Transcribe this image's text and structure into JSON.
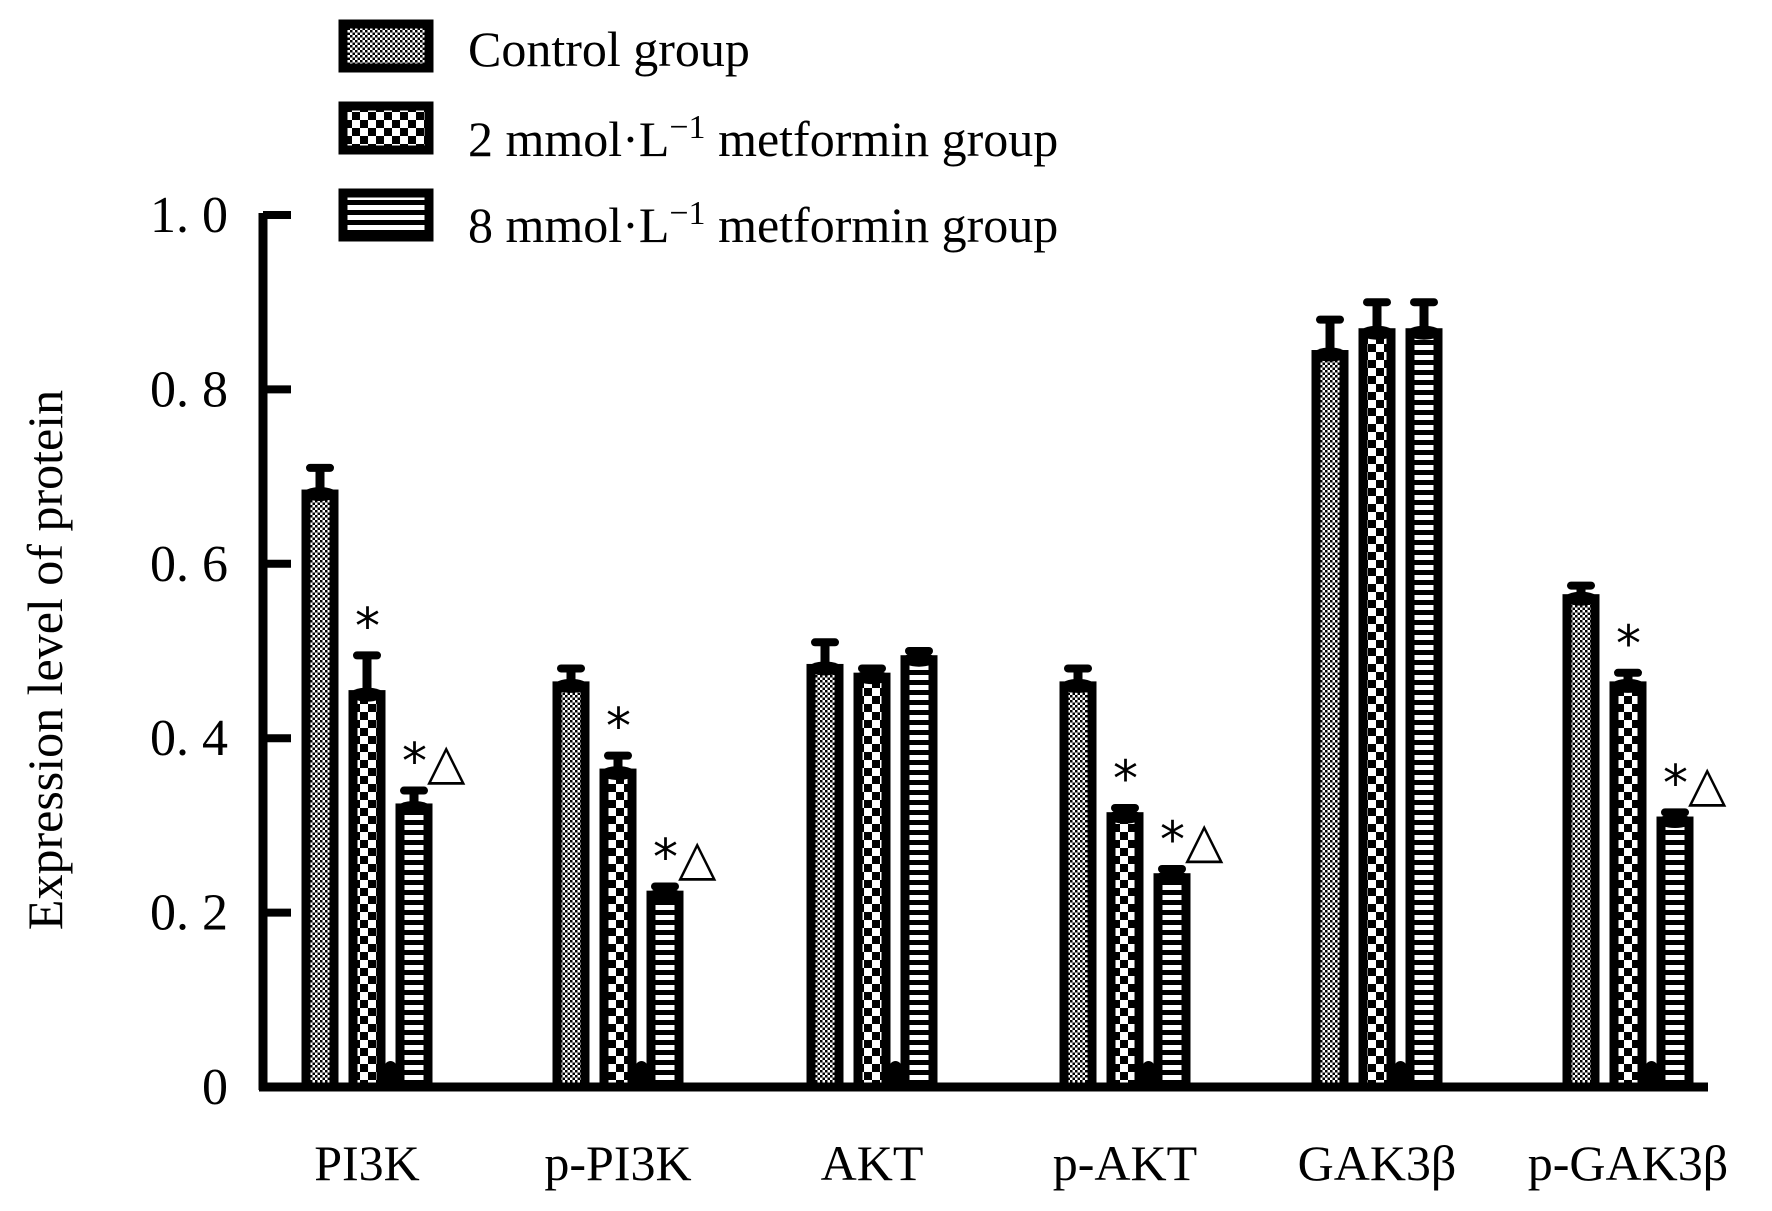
{
  "chart_data": {
    "type": "bar",
    "title": "",
    "xlabel": "",
    "ylabel": "Expression level of protein",
    "ylim": [
      0,
      1.0
    ],
    "yticks": [
      "0",
      "0. 2",
      "0. 4",
      "0. 6",
      "0. 8",
      "1. 0"
    ],
    "ytick_values": [
      0,
      0.2,
      0.4,
      0.6,
      0.8,
      1.0
    ],
    "categories": [
      "PI3K",
      "p-PI3K",
      "AKT",
      "p-AKT",
      "GAK3β",
      "p-GAK3β"
    ],
    "legend_position": "top-left",
    "series": [
      {
        "name": "Control group",
        "pattern": "dotted",
        "values": [
          0.68,
          0.46,
          0.48,
          0.46,
          0.84,
          0.56
        ],
        "errors": [
          0.03,
          0.02,
          0.03,
          0.02,
          0.04,
          0.015
        ],
        "annotations": [
          "",
          "",
          "",
          "",
          "",
          ""
        ]
      },
      {
        "name_prefix": "2 mmol·L",
        "name_sup": "−1",
        "name_suffix": " metformin group",
        "pattern": "checker",
        "values": [
          0.45,
          0.36,
          0.47,
          0.31,
          0.865,
          0.46
        ],
        "errors": [
          0.045,
          0.02,
          0.01,
          0.01,
          0.035,
          0.015
        ],
        "annotations": [
          "*",
          "*",
          "",
          "*",
          "",
          "*"
        ]
      },
      {
        "name_prefix": "8 mmol·L",
        "name_sup": "−1",
        "name_suffix": " metformin group",
        "pattern": "striped",
        "values": [
          0.32,
          0.22,
          0.49,
          0.24,
          0.865,
          0.305
        ],
        "errors": [
          0.02,
          0.01,
          0.01,
          0.01,
          0.035,
          0.01
        ],
        "annotations": [
          "*△",
          "*△",
          "",
          "*△",
          "",
          "*△"
        ]
      }
    ]
  }
}
